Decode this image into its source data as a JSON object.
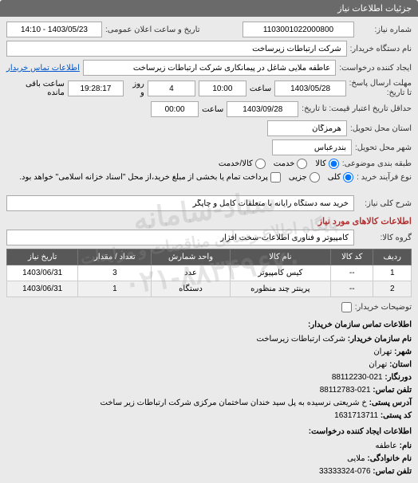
{
  "header": {
    "title": "جزئیات اطلاعات نیاز"
  },
  "form": {
    "need_number_label": "شماره نیاز:",
    "need_number": "1103001022000800",
    "announce_label": "تاریخ و ساعت اعلان عمومی:",
    "announce_value": "1403/05/23 - 14:10",
    "buyer_org_label": "نام دستگاه خریدار:",
    "buyer_org": "شرکت ارتباطات زیرساخت",
    "requester_label": "ایجاد کننده درخواست:",
    "requester": "عاطفه ملایی شاغل در پیمانکاری شرکت ارتباطات زیرساخت",
    "contact_link": "اطلاعات تماس خریدار",
    "deadline_label": "مهلت ارسال پاسخ:",
    "deadline_to_label": "تا تاریخ:",
    "deadline_date": "1403/05/28",
    "time_label": "ساعت",
    "deadline_time": "10:00",
    "remain_days": "4",
    "remain_days_label": "روز و",
    "remain_time": "19:28:17",
    "remain_suffix": "ساعت باقی مانده",
    "validity_label": "حداقل تاریخ اعتبار قیمت: تا تاریخ:",
    "validity_date": "1403/09/28",
    "validity_time": "00:00",
    "province_label": "استان محل تحویل:",
    "province": "هرمزگان",
    "city_label": "شهر محل تحویل:",
    "city": "بندرعباس",
    "category_label": "طبقه بندی موضوعی:",
    "cat_goods": "کالا",
    "cat_service": "خدمت",
    "cat_goods_service": "کالا/خدمت",
    "process_label": "نوع فرآیند خرید :",
    "proc_total": "کلی",
    "proc_partial": "جزیی",
    "process_note": "پرداخت تمام یا بخشی از مبلغ خرید،از محل \"اسناد خزانه اسلامی\" خواهد بود.",
    "desc_label": "شرح کلی نیاز:",
    "desc_value": "خرید سه دستگاه رایانه با متعلقات کامل و چاپگر",
    "items_section": "اطلاعات کالاهای مورد نیاز",
    "group_label": "گروه کالا:",
    "group_value": "کامپیوتر و فناوری اطلاعات-سخت افزار",
    "explain_label": "توضیحات خریدار:"
  },
  "table": {
    "headers": [
      "ردیف",
      "کد کالا",
      "نام کالا",
      "واحد شمارش",
      "تعداد / مقدار",
      "تاریخ نیاز"
    ],
    "rows": [
      [
        "1",
        "--",
        "کیس کامپیوتر",
        "عدد",
        "3",
        "1403/06/31"
      ],
      [
        "2",
        "--",
        "پرینتر چند منظوره",
        "دستگاه",
        "1",
        "1403/06/31"
      ]
    ]
  },
  "footer": {
    "contact_title": "اطلاعات تماس سازمان خریدار:",
    "org_label": "نام سازمان خریدار:",
    "org_value": "شرکت ارتباطات زیرساخت",
    "city_label": "شهر:",
    "city_value": "تهران",
    "province_label": "استان:",
    "province_value": "تهران",
    "fax_label": "دورنگار:",
    "fax_value": "021-88112230",
    "phone_label": "تلفن تماس:",
    "phone_value": "021-88112783",
    "address_label": "آدرس پستی:",
    "address_value": "خ شریعتی نرسیده به پل سید خندان ساختمان مرکزی شرکت ارتباطات زیر ساخت",
    "postal_label": "کد پستی:",
    "postal_value": "1631713711",
    "creator_title": "اطلاعات ایجاد کننده درخواست:",
    "name_label": "نام:",
    "name_value": "عاطفه",
    "lastname_label": "نام خانوادگی:",
    "lastname_value": "ملایی",
    "tel_label": "تلفن تماس:",
    "tel_value": "076-33333324"
  },
  "watermark": {
    "line1": "ستاد-سامانه",
    "line2": "پایگاه اطلاع رسانی مناقصات و مزایدات",
    "line3": "۰۲۱-۸۸۳۴۹۶۷۰"
  }
}
